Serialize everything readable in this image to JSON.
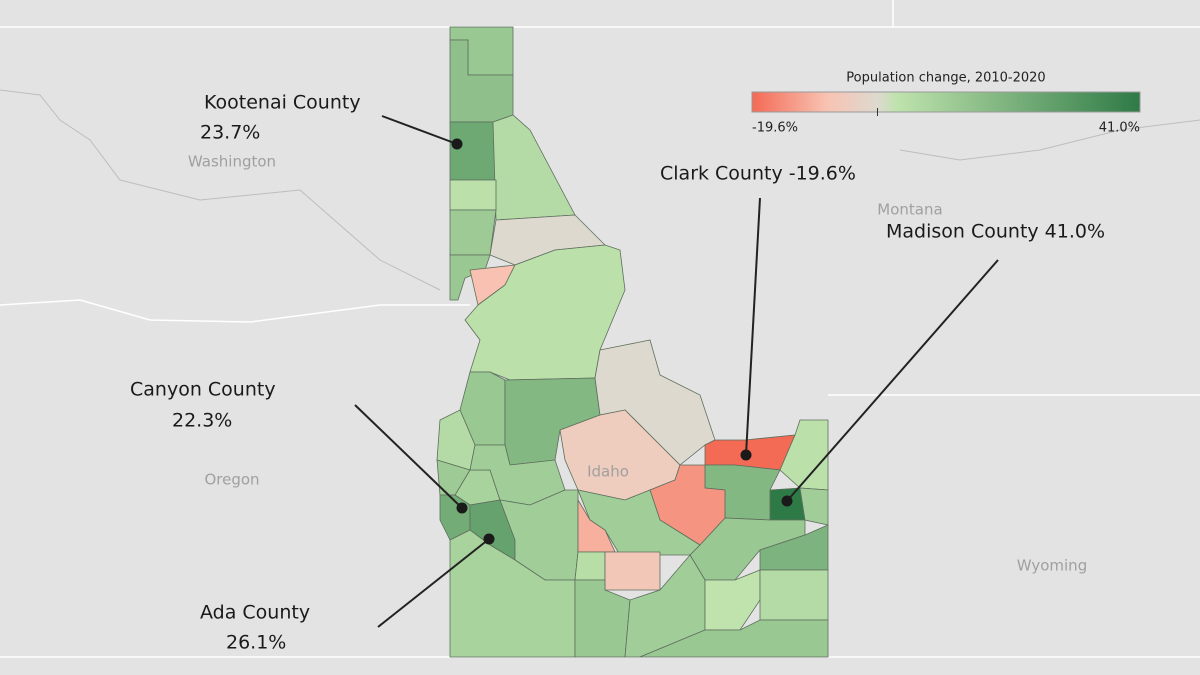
{
  "chart_data": {
    "type": "choropleth",
    "legend": {
      "title": "Population change, 2010-2020",
      "min": -19.6,
      "max": 41.0,
      "min_label": "-19.6%",
      "max_label": "41.0%",
      "colors": [
        "#f36a55",
        "#f8c3b3",
        "#ddd9cf",
        "#bfe3ad",
        "#2e7a46"
      ]
    },
    "region_labels": [
      "Washington",
      "Oregon",
      "Montana",
      "Wyoming",
      "Idaho"
    ],
    "regions": {
      "values": [
        12,
        15,
        23.7,
        5,
        3,
        11,
        0,
        12,
        -10,
        3,
        12,
        18,
        0,
        5,
        -6,
        -19.6,
        3,
        41.0,
        18,
        -15,
        10,
        8,
        11,
        10,
        22.3,
        26.1,
        10,
        10,
        -12,
        12,
        20,
        8,
        4,
        -8,
        12,
        10,
        2,
        5,
        12
      ]
    },
    "annotations": {
      "names": [
        "Kootenai County",
        "Clark County",
        "Madison County",
        "Canyon County",
        "Ada County"
      ],
      "values": [
        23.7,
        -19.6,
        41.0,
        22.3,
        26.1
      ],
      "value_labels": [
        "23.7%",
        "-19.6%",
        "41.0%",
        "22.3%",
        "26.1%"
      ]
    }
  }
}
